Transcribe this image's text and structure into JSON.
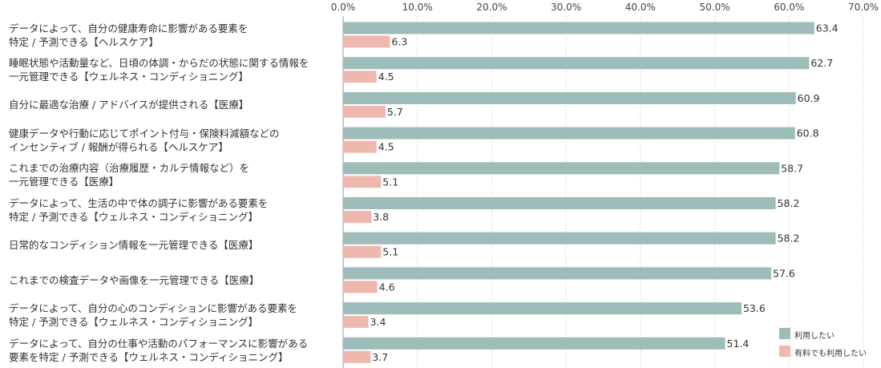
{
  "chart_data": {
    "type": "bar",
    "orientation": "horizontal",
    "xlim": [
      0,
      70
    ],
    "ticks": [
      "0.0%",
      "10.0%",
      "20.0%",
      "30.0%",
      "40.0%",
      "50.0%",
      "60.0%",
      "70.0%"
    ],
    "grid": true,
    "legend_position": "bottom-right",
    "categories": [
      [
        "データによって、自分の健康寿命に影響がある要素を",
        "特定 / 予測できる【ヘルスケア】"
      ],
      [
        "睡眠状態や活動量など、日頃の体調・からだの状態に関する情報を",
        "一元管理できる【ウェルネス・コンディショニング】"
      ],
      [
        "自分に最適な治療 / アドバイスが提供される【医療】"
      ],
      [
        "健康データや行動に応じてポイント付与・保険料減額などの",
        "インセンティブ / 報酬が得られる【ヘルスケア】"
      ],
      [
        "これまでの治療内容（治療履歴・カルテ情報など）を",
        "一元管理できる【医療】"
      ],
      [
        "データによって、生活の中で体の調子に影響がある要素を",
        "特定 / 予測できる【ウェルネス・コンディショニング】"
      ],
      [
        "日常的なコンディション情報を一元管理できる【医療】"
      ],
      [
        "これまでの検査データや画像を一元管理できる【医療】"
      ],
      [
        "データによって、自分の心のコンディションに影響がある要素を",
        "特定 / 予測できる【ウェルネス・コンディショニング】"
      ],
      [
        "データによって、自分の仕事や活動のパフォーマンスに影響がある",
        "要素を特定 / 予測できる【ウェルネス・コンディショニング】"
      ]
    ],
    "series": [
      {
        "name": "利用したい",
        "color": "#9dbcba",
        "values": [
          63.4,
          62.7,
          60.9,
          60.8,
          58.7,
          58.2,
          58.2,
          57.6,
          53.6,
          51.4
        ],
        "labels": [
          "63.4",
          "62.7",
          "60.9",
          "60.8",
          "58.7",
          "58.2",
          "58.2",
          "57.6",
          "53.6",
          "51.4"
        ]
      },
      {
        "name": "有料でも利用したい",
        "color": "#efb8ae",
        "values": [
          6.3,
          4.5,
          5.7,
          4.5,
          5.1,
          3.8,
          5.1,
          4.6,
          3.4,
          3.7
        ],
        "labels": [
          "6.3",
          "4.5",
          "5.7",
          "4.5",
          "5.1",
          "3.8",
          "5.1",
          "4.6",
          "3.4",
          "3.7"
        ]
      }
    ]
  }
}
